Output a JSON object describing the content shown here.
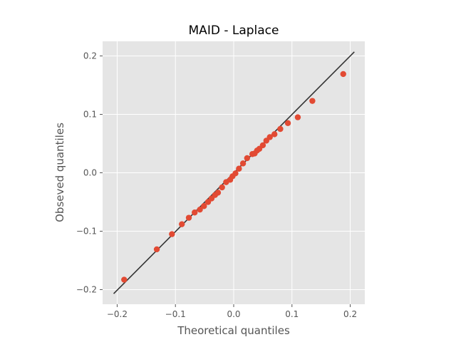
{
  "chart_data": {
    "type": "scatter",
    "title": "MAID - Laplace",
    "xlabel": "Theoretical quantiles",
    "ylabel": "Obseved quantiles",
    "xlim": [
      -0.225,
      0.225
    ],
    "ylim": [
      -0.225,
      0.225
    ],
    "xticks": [
      -0.2,
      -0.1,
      0.0,
      0.1,
      0.2
    ],
    "yticks": [
      -0.2,
      -0.1,
      0.0,
      0.1,
      0.2
    ],
    "xtick_labels": [
      "−0.2",
      "−0.1",
      "0.0",
      "0.1",
      "0.2"
    ],
    "ytick_labels": [
      "−0.2",
      "−0.1",
      "0.0",
      "0.1",
      "0.2"
    ],
    "grid": true,
    "reference_line": {
      "x": [
        -0.206,
        0.207
      ],
      "y": [
        -0.207,
        0.207
      ]
    },
    "colors": {
      "background": "#e5e5e5",
      "points": "#e24a33",
      "line": "#333333",
      "grid": "#ffffff"
    },
    "points": [
      {
        "x": -0.188,
        "y": -0.183
      },
      {
        "x": -0.132,
        "y": -0.131
      },
      {
        "x": -0.106,
        "y": -0.105
      },
      {
        "x": -0.089,
        "y": -0.088
      },
      {
        "x": -0.077,
        "y": -0.077
      },
      {
        "x": -0.067,
        "y": -0.068
      },
      {
        "x": -0.058,
        "y": -0.063
      },
      {
        "x": -0.051,
        "y": -0.057
      },
      {
        "x": -0.044,
        "y": -0.05
      },
      {
        "x": -0.038,
        "y": -0.044
      },
      {
        "x": -0.032,
        "y": -0.038
      },
      {
        "x": -0.027,
        "y": -0.034
      },
      {
        "x": -0.02,
        "y": -0.025
      },
      {
        "x": -0.013,
        "y": -0.016
      },
      {
        "x": -0.006,
        "y": -0.012
      },
      {
        "x": -0.002,
        "y": -0.006
      },
      {
        "x": 0.003,
        "y": -0.001
      },
      {
        "x": 0.009,
        "y": 0.007
      },
      {
        "x": 0.016,
        "y": 0.016
      },
      {
        "x": 0.023,
        "y": 0.025
      },
      {
        "x": 0.032,
        "y": 0.032
      },
      {
        "x": 0.036,
        "y": 0.033
      },
      {
        "x": 0.04,
        "y": 0.038
      },
      {
        "x": 0.044,
        "y": 0.041
      },
      {
        "x": 0.05,
        "y": 0.047
      },
      {
        "x": 0.056,
        "y": 0.055
      },
      {
        "x": 0.062,
        "y": 0.061
      },
      {
        "x": 0.07,
        "y": 0.066
      },
      {
        "x": 0.08,
        "y": 0.075
      },
      {
        "x": 0.093,
        "y": 0.085
      },
      {
        "x": 0.11,
        "y": 0.095
      },
      {
        "x": 0.135,
        "y": 0.123
      },
      {
        "x": 0.188,
        "y": 0.169
      }
    ]
  }
}
